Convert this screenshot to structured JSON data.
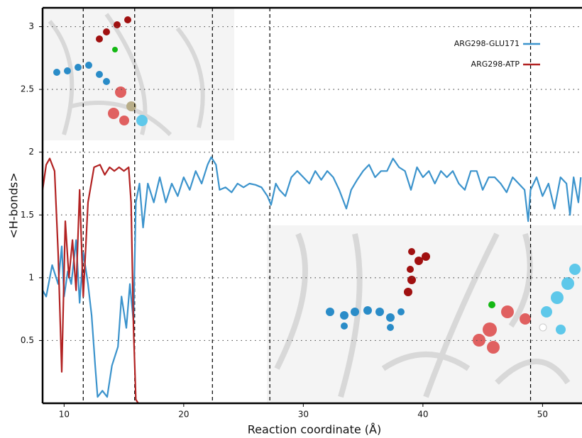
{
  "chart_data": {
    "type": "line",
    "xlabel": "Reaction coordinate (Å)",
    "ylabel": "<H-bonds>",
    "xlim": [
      8.2,
      53.3
    ],
    "ylim": [
      0,
      3.15
    ],
    "xticks": [
      10,
      20,
      30,
      40,
      50
    ],
    "yticks": [
      0.5,
      1,
      1.5,
      2,
      2.5,
      3
    ],
    "grid": true,
    "legend": "upper right",
    "vlines": [
      11.6,
      15.9,
      22.4,
      27.2,
      49.0
    ],
    "series": [
      {
        "name": "ARG298-GLU171",
        "color": "#3b93cc",
        "x": [
          8.2,
          8.5,
          9,
          9.5,
          9.8,
          10,
          10.3,
          10.6,
          11,
          11.3,
          11.6,
          12,
          12.3,
          12.6,
          12.8,
          13.2,
          13.6,
          14,
          14.5,
          14.8,
          15.2,
          15.5,
          15.8,
          16,
          16.3,
          16.6,
          17,
          17.5,
          18,
          18.5,
          19,
          19.5,
          20,
          20.5,
          21,
          21.5,
          22,
          22.3,
          22.7,
          23,
          23.5,
          24,
          24.5,
          25,
          25.5,
          26,
          26.5,
          27,
          27.3,
          27.7,
          28,
          28.5,
          29,
          29.5,
          30,
          30.5,
          31,
          31.5,
          32,
          32.5,
          33,
          33.6,
          34,
          34.5,
          35,
          35.5,
          36,
          36.5,
          37,
          37.5,
          38,
          38.5,
          39,
          39.5,
          40,
          40.5,
          41,
          41.5,
          42,
          42.5,
          43,
          43.5,
          44,
          44.5,
          45,
          45.5,
          46,
          46.5,
          47,
          47.5,
          48,
          48.5,
          48.8,
          49,
          49.5,
          50,
          50.5,
          51,
          51.5,
          52,
          52.3,
          52.6,
          53,
          53.2
        ],
        "values": [
          0.9,
          0.85,
          1.1,
          0.95,
          1.25,
          0.85,
          1.05,
          0.95,
          1.3,
          0.8,
          1.2,
          0.95,
          0.7,
          0.3,
          0.05,
          0.1,
          0.05,
          0.3,
          0.45,
          0.85,
          0.6,
          0.95,
          0.65,
          1.6,
          1.75,
          1.4,
          1.75,
          1.6,
          1.8,
          1.6,
          1.75,
          1.65,
          1.8,
          1.7,
          1.85,
          1.75,
          1.9,
          1.96,
          1.9,
          1.7,
          1.72,
          1.68,
          1.75,
          1.72,
          1.75,
          1.74,
          1.72,
          1.65,
          1.58,
          1.75,
          1.7,
          1.65,
          1.8,
          1.85,
          1.8,
          1.75,
          1.85,
          1.78,
          1.85,
          1.8,
          1.7,
          1.55,
          1.7,
          1.78,
          1.85,
          1.9,
          1.8,
          1.85,
          1.85,
          1.95,
          1.88,
          1.85,
          1.7,
          1.88,
          1.8,
          1.85,
          1.75,
          1.85,
          1.8,
          1.85,
          1.75,
          1.7,
          1.85,
          1.85,
          1.7,
          1.8,
          1.8,
          1.75,
          1.68,
          1.8,
          1.75,
          1.7,
          1.45,
          1.7,
          1.8,
          1.65,
          1.75,
          1.55,
          1.8,
          1.75,
          1.5,
          1.8,
          1.6,
          1.8
        ]
      },
      {
        "name": "ARG298-ATP",
        "color": "#b22222",
        "x": [
          8.2,
          8.5,
          8.8,
          9.2,
          9.5,
          9.8,
          10.1,
          10.4,
          10.7,
          11,
          11.3,
          11.6,
          12,
          12.5,
          13,
          13.4,
          13.8,
          14.2,
          14.6,
          15,
          15.4,
          15.6,
          15.8,
          16,
          16.2
        ],
        "values": [
          1.7,
          1.9,
          1.95,
          1.85,
          1.2,
          0.25,
          1.45,
          1.0,
          1.3,
          0.9,
          1.7,
          0.85,
          1.6,
          1.88,
          1.9,
          1.82,
          1.88,
          1.85,
          1.88,
          1.85,
          1.88,
          1.6,
          0.6,
          0.03,
          0
        ]
      }
    ]
  }
}
